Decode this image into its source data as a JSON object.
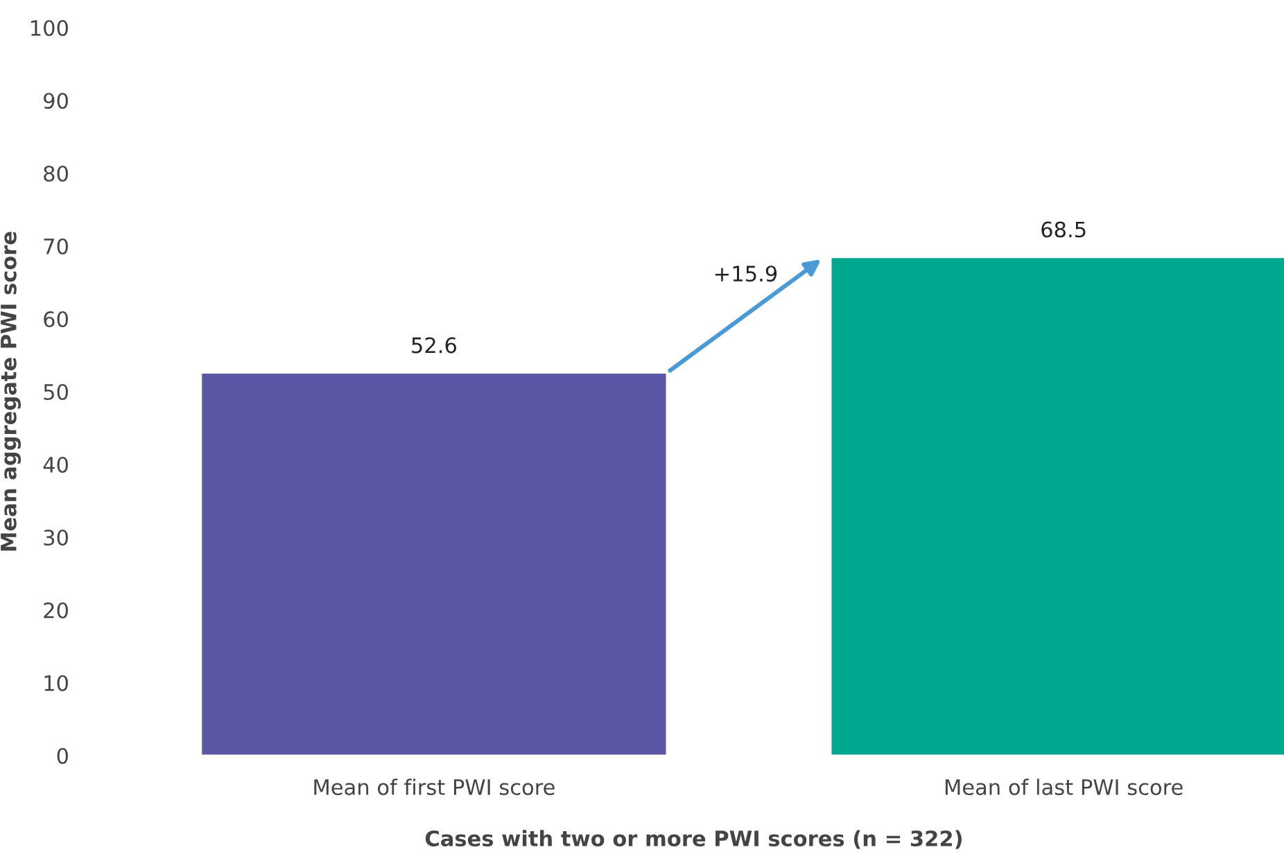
{
  "chart_data": {
    "type": "bar",
    "xlabel": "Cases with two or more PWI scores (n = 322)",
    "ylabel": "Mean aggregate PWI score",
    "categories": [
      "Mean of first PWI score",
      "Mean of last PWI score"
    ],
    "values": [
      52.6,
      68.5
    ],
    "colors": [
      "#5b55a5",
      "#00a88f"
    ],
    "ylim": [
      0,
      100
    ],
    "yticks": [
      0,
      10,
      20,
      30,
      40,
      50,
      60,
      70,
      80,
      90,
      100
    ],
    "grid": false,
    "data_labels": true,
    "annotations": [
      "+15.9"
    ]
  }
}
